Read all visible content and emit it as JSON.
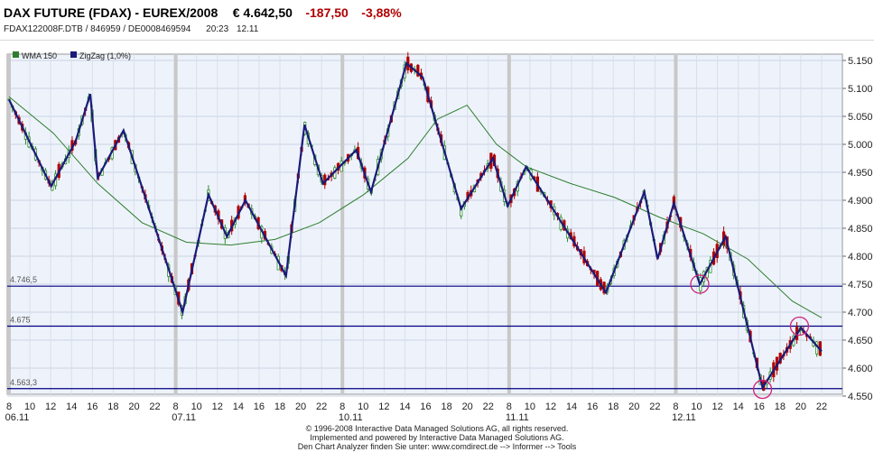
{
  "header": {
    "title": "DAX FUTURE (FDAX) - EUREX/2008",
    "price": "€ 4.642,50",
    "change_abs": "-187,50",
    "change_pct": "-3,88%",
    "identifiers": "FDAX122008F.DTB  /  846959  /  DE0008469594",
    "time": "20:23",
    "date": "12.11"
  },
  "footer": {
    "line1": "© 1996-2008 Interactive Data Managed Solutions AG, all rights reserved.",
    "line2": "Implemented and powered by Interactive Data Managed Solutions AG.",
    "line3": "Den Chart Analyzer finden Sie unter: www.comdirect.de --> Informer --> Tools"
  },
  "colors": {
    "up": "#2e8b2e",
    "down": "#b00000",
    "zigzag": "#1a1a7a",
    "wma": "#2e7d2e",
    "hline": "#000080",
    "circle": "#d0207a",
    "plot_bg": "#eef3fb"
  },
  "chart_data": {
    "type": "line",
    "legend": [
      "WMA 150",
      "ZigZag (1,0%)"
    ],
    "y_ticks": [
      "5.150",
      "5.100",
      "5.050",
      "5.000",
      "4.950",
      "4.900",
      "4.850",
      "4.800",
      "4.750",
      "4.700",
      "4.650",
      "4.600",
      "4.550"
    ],
    "ylim": [
      4550,
      5160
    ],
    "x_ticks": [
      "8",
      "10",
      "12",
      "14",
      "16",
      "18",
      "20",
      "22",
      "8",
      "10",
      "12",
      "14",
      "16",
      "18",
      "20",
      "22",
      "8",
      "10",
      "12",
      "14",
      "16",
      "18",
      "20",
      "22",
      "8",
      "10",
      "12",
      "14",
      "16",
      "18",
      "20",
      "22",
      "8",
      "10",
      "12",
      "14",
      "16",
      "18",
      "20",
      "22"
    ],
    "day_labels": [
      "06.11",
      "07.11",
      "10.11",
      "11.11",
      "12.11"
    ],
    "horizontal_lines": [
      {
        "label": "4.746,5",
        "value": 4746.5
      },
      {
        "label": "4.675",
        "value": 4675
      },
      {
        "label": "4.563,3",
        "value": 4563.3
      }
    ],
    "zigzag": [
      [
        0.0,
        5080
      ],
      [
        5.7,
        4925
      ],
      [
        9.0,
        5005
      ],
      [
        11.0,
        5090
      ],
      [
        12.0,
        4940
      ],
      [
        15.5,
        5025
      ],
      [
        23.5,
        4700
      ],
      [
        27.0,
        4910
      ],
      [
        29.5,
        4835
      ],
      [
        32.0,
        4900
      ],
      [
        37.5,
        4765
      ],
      [
        40.0,
        5035
      ],
      [
        42.5,
        4930
      ],
      [
        47.0,
        4990
      ],
      [
        49.0,
        4915
      ],
      [
        53.8,
        5145
      ],
      [
        56.0,
        5120
      ],
      [
        61.2,
        4885
      ],
      [
        65.5,
        4975
      ],
      [
        67.5,
        4890
      ],
      [
        70.0,
        4960
      ],
      [
        80.8,
        4735
      ],
      [
        86.0,
        4915
      ],
      [
        87.8,
        4795
      ],
      [
        90.0,
        4895
      ],
      [
        93.5,
        4750
      ],
      [
        97.0,
        4835
      ],
      [
        102.0,
        4565
      ],
      [
        107.2,
        4672
      ],
      [
        110.0,
        4630
      ]
    ],
    "wma": [
      [
        0.0,
        5085
      ],
      [
        6.0,
        5020
      ],
      [
        12.0,
        4930
      ],
      [
        18.0,
        4860
      ],
      [
        24.0,
        4825
      ],
      [
        30.0,
        4820
      ],
      [
        36.0,
        4830
      ],
      [
        42.0,
        4860
      ],
      [
        48.0,
        4910
      ],
      [
        54.0,
        4975
      ],
      [
        58.0,
        5045
      ],
      [
        62.0,
        5070
      ],
      [
        66.0,
        5000
      ],
      [
        70.0,
        4960
      ],
      [
        76.0,
        4930
      ],
      [
        82.0,
        4905
      ],
      [
        88.0,
        4870
      ],
      [
        94.0,
        4840
      ],
      [
        100.0,
        4795
      ],
      [
        106.0,
        4720
      ],
      [
        110.0,
        4690
      ]
    ],
    "highlight_circles": [
      {
        "x": 93.5,
        "y": 4750
      },
      {
        "x": 102.0,
        "y": 4562
      },
      {
        "x": 107.0,
        "y": 4675
      }
    ]
  }
}
